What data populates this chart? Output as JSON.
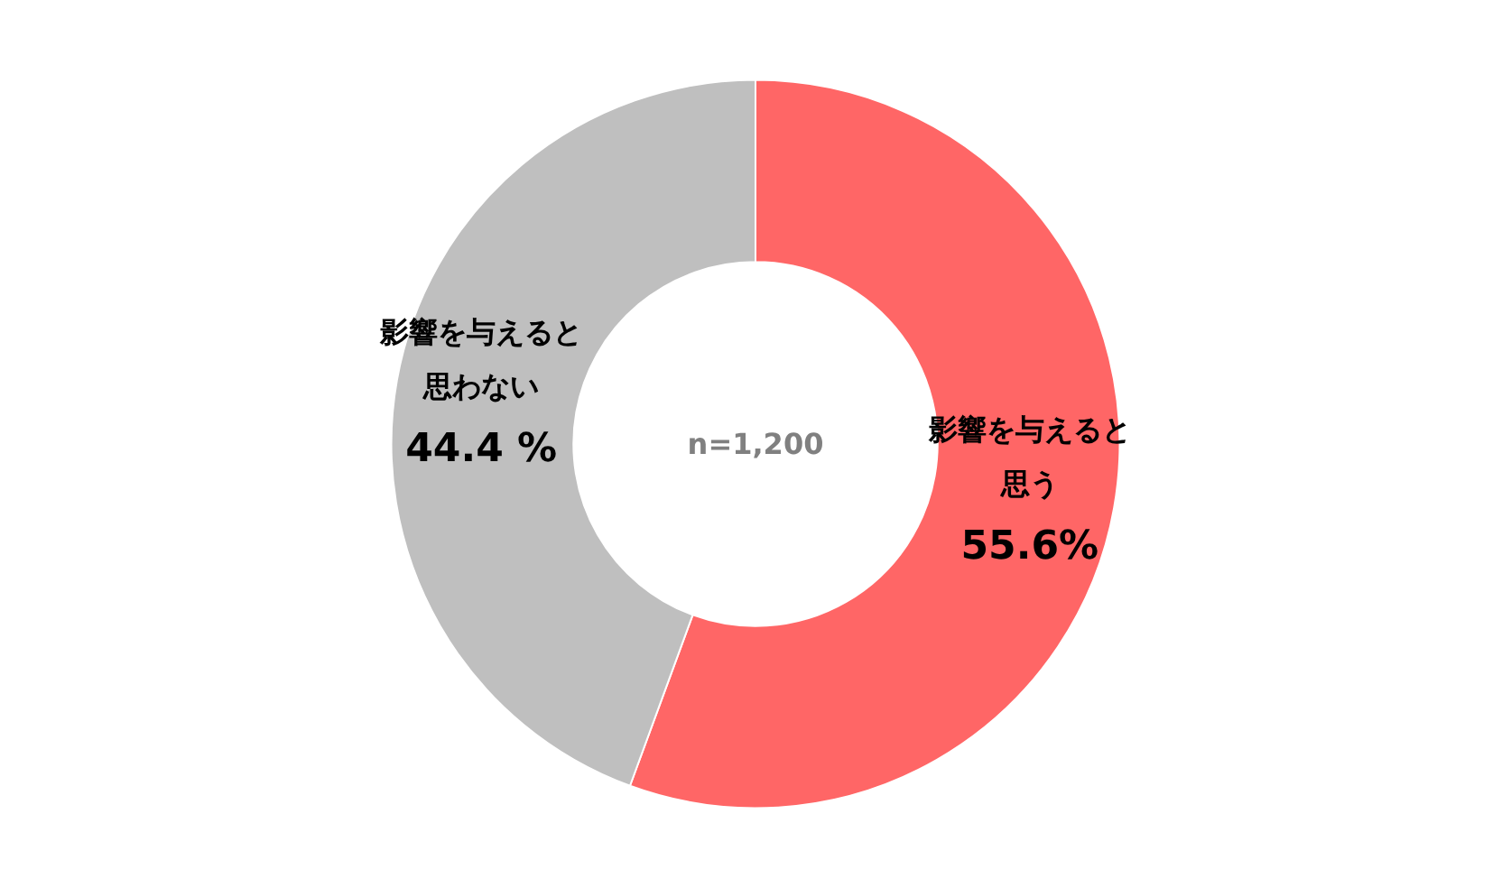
{
  "chart_data": {
    "type": "donut",
    "categories": [
      "影響を与えると思う",
      "影響を与えると思わない"
    ],
    "values": [
      55.6,
      44.4
    ],
    "colors": [
      "#ff6666",
      "#bfbfbf"
    ],
    "value_labels": [
      "55.6%",
      "44.4 %"
    ],
    "annotations": [
      "n=1,200"
    ],
    "legend": false
  }
}
